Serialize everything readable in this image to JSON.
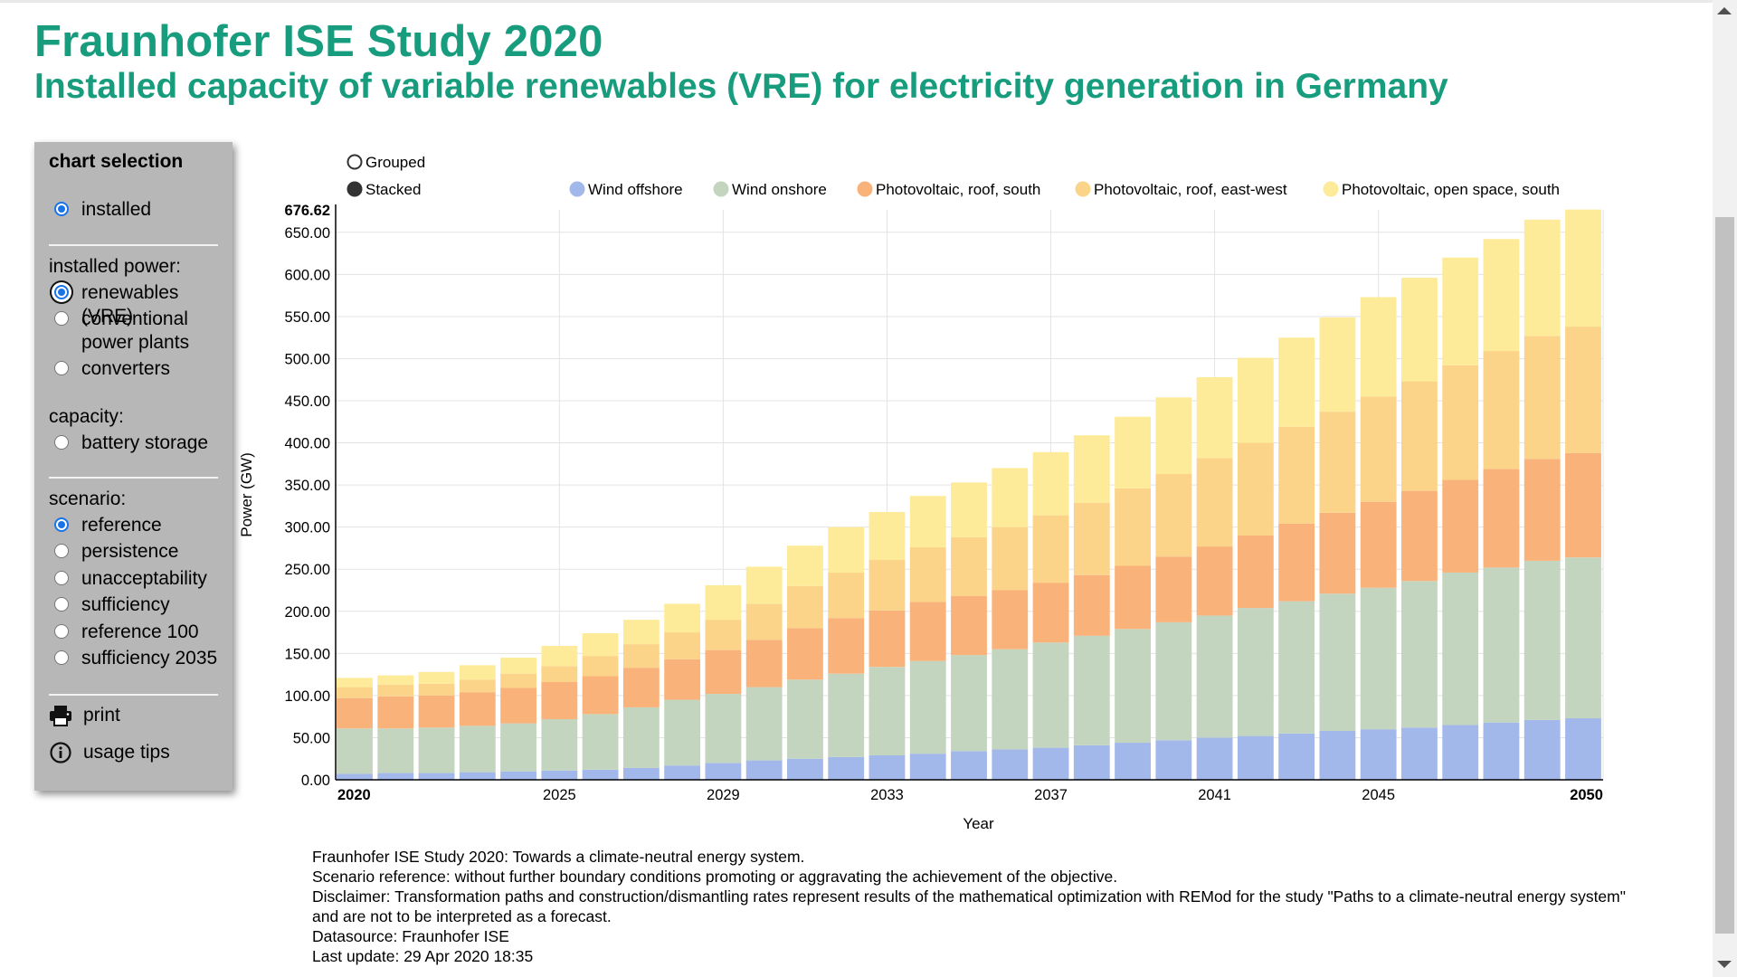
{
  "header": {
    "title": "Fraunhofer ISE Study 2020",
    "subtitle": "Installed capacity of variable renewables (VRE) for electricity generation in Germany"
  },
  "panel": {
    "heading": "chart selection",
    "mode_options": [
      {
        "label": "installed",
        "selected": true
      }
    ],
    "installed_power_label": "installed power:",
    "installed_power_options": [
      {
        "label": "renewables (VRE)",
        "selected": true
      },
      {
        "label": "conventional\npower plants",
        "selected": false
      },
      {
        "label": "converters",
        "selected": false
      }
    ],
    "capacity_label": "capacity:",
    "capacity_options": [
      {
        "label": "battery storage",
        "selected": false
      }
    ],
    "scenario_label": "scenario:",
    "scenario_options": [
      {
        "label": "reference",
        "selected": true
      },
      {
        "label": "persistence",
        "selected": false
      },
      {
        "label": "unacceptability",
        "selected": false
      },
      {
        "label": "sufficiency",
        "selected": false
      },
      {
        "label": "reference 100",
        "selected": false
      },
      {
        "label": "sufficiency 2035",
        "selected": false
      }
    ],
    "print_label": "print",
    "tips_label": "usage tips"
  },
  "chart_data": {
    "type": "bar",
    "stacked": true,
    "display_toggle": [
      {
        "label": "Grouped",
        "selected": false
      },
      {
        "label": "Stacked",
        "selected": true
      }
    ],
    "xlabel": "Year",
    "ylabel": "Power (GW)",
    "ylim": [
      0,
      676.62
    ],
    "ymax_label": "676.62",
    "yticks": [
      "0.00",
      "50.00",
      "100.00",
      "150.00",
      "200.00",
      "250.00",
      "300.00",
      "350.00",
      "400.00",
      "450.00",
      "500.00",
      "550.00",
      "600.00",
      "650.00"
    ],
    "xticks": [
      {
        "year": 2020,
        "label": "2020",
        "bold": true
      },
      {
        "year": 2025,
        "label": "2025",
        "bold": false
      },
      {
        "year": 2029,
        "label": "2029",
        "bold": false
      },
      {
        "year": 2033,
        "label": "2033",
        "bold": false
      },
      {
        "year": 2037,
        "label": "2037",
        "bold": false
      },
      {
        "year": 2041,
        "label": "2041",
        "bold": false
      },
      {
        "year": 2045,
        "label": "2045",
        "bold": false
      },
      {
        "year": 2050,
        "label": "2050",
        "bold": true
      }
    ],
    "categories": [
      2020,
      2021,
      2022,
      2023,
      2024,
      2025,
      2026,
      2027,
      2028,
      2029,
      2030,
      2031,
      2032,
      2033,
      2034,
      2035,
      2036,
      2037,
      2038,
      2039,
      2040,
      2041,
      2042,
      2043,
      2044,
      2045,
      2046,
      2047,
      2048,
      2049,
      2050
    ],
    "series": [
      {
        "name": "Wind offshore",
        "color": "#a3b8ea",
        "values": [
          7,
          8,
          8,
          9,
          10,
          11,
          12,
          14,
          17,
          20,
          23,
          25,
          27,
          29,
          31,
          34,
          36,
          38,
          41,
          44,
          47,
          50,
          52,
          55,
          58,
          60,
          62,
          65,
          68,
          71,
          73
        ]
      },
      {
        "name": "Wind onshore",
        "color": "#c4d5bf",
        "values": [
          54,
          53,
          54,
          55,
          57,
          61,
          66,
          72,
          78,
          82,
          87,
          94,
          99,
          105,
          110,
          114,
          119,
          125,
          130,
          135,
          140,
          145,
          152,
          157,
          163,
          168,
          174,
          181,
          184,
          189,
          191
        ]
      },
      {
        "name": "Photovoltaic, roof, south",
        "color": "#f9b27a",
        "values": [
          36,
          38,
          38,
          40,
          42,
          44,
          45,
          47,
          48,
          52,
          56,
          61,
          66,
          67,
          70,
          70,
          70,
          71,
          72,
          75,
          78,
          82,
          86,
          92,
          96,
          102,
          107,
          110,
          117,
          121,
          124
        ]
      },
      {
        "name": "Photovoltaic, roof, east-west",
        "color": "#fbd48a",
        "values": [
          13,
          14,
          14,
          15,
          17,
          19,
          24,
          28,
          32,
          36,
          43,
          50,
          54,
          60,
          65,
          70,
          75,
          80,
          86,
          92,
          98,
          105,
          110,
          115,
          120,
          125,
          130,
          136,
          140,
          146,
          150
        ]
      },
      {
        "name": "Photovoltaic, open space, south",
        "color": "#fdeb99",
        "values": [
          11,
          11,
          14,
          17,
          19,
          24,
          27,
          29,
          34,
          41,
          44,
          48,
          54,
          57,
          61,
          65,
          70,
          75,
          80,
          85,
          91,
          96,
          101,
          106,
          112,
          118,
          123,
          128,
          133,
          138,
          139
        ]
      }
    ]
  },
  "notes": [
    "Fraunhofer ISE Study 2020: Towards a climate-neutral energy system.",
    "Scenario reference: without further boundary conditions promoting or aggravating the achievement of the objective.",
    "Disclaimer: Transformation paths and construction/dismantling rates represent results of the mathematical optimization with REMod for the study \"Paths to a climate-neutral energy system\" and are not to be interpreted as a forecast.",
    "Datasource: Fraunhofer ISE",
    "Last update: 29 Apr 2020 18:35"
  ]
}
